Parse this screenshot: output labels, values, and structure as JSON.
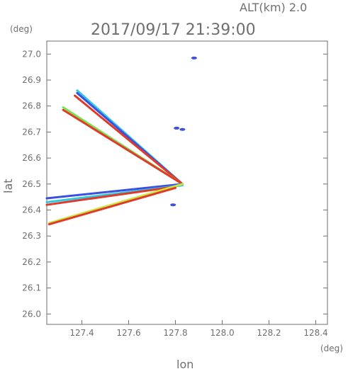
{
  "chart_data": {
    "type": "scatter",
    "title": "2017/09/17 21:39:00",
    "subtitle": "ALT(km) 2.0",
    "xlabel": "lon",
    "ylabel": "lat",
    "x_unit": "(deg)",
    "y_unit": "(deg)",
    "xlim": [
      127.25,
      128.45
    ],
    "ylim": [
      25.96,
      27.05
    ],
    "xticks": [
      "127.4",
      "127.6",
      "127.8",
      "128.0",
      "128.2",
      "128.4"
    ],
    "yticks": [
      "26.0",
      "26.1",
      "26.2",
      "26.3",
      "26.4",
      "26.5",
      "26.6",
      "26.7",
      "26.8",
      "26.9",
      "27.0"
    ],
    "grid": false,
    "colors": {
      "weak": "#3b4fe0",
      "cyan": "#2ec8e0",
      "green": "#7be050",
      "yellow": "#e8e83a",
      "red": "#e03a2a",
      "frame": "#6f6f6f"
    },
    "series": [
      {
        "x": [
          127.38,
          127.83
        ],
        "y": [
          26.86,
          26.5
        ],
        "color": "#2ec8e0"
      },
      {
        "x": [
          127.38,
          127.83
        ],
        "y": [
          26.85,
          26.5
        ],
        "color": "#3b4fe0"
      },
      {
        "x": [
          127.37,
          127.83
        ],
        "y": [
          26.84,
          26.5
        ],
        "color": "#e03a2a"
      },
      {
        "x": [
          127.32,
          127.83
        ],
        "y": [
          26.795,
          26.5
        ],
        "color": "#7be050"
      },
      {
        "x": [
          127.32,
          127.83
        ],
        "y": [
          26.785,
          26.5
        ],
        "color": "#e03a2a"
      },
      {
        "x": [
          127.25,
          127.83
        ],
        "y": [
          26.445,
          26.5
        ],
        "color": "#3b4fe0"
      },
      {
        "x": [
          127.25,
          127.83
        ],
        "y": [
          26.43,
          26.495
        ],
        "color": "#2ec8e0"
      },
      {
        "x": [
          127.25,
          127.8
        ],
        "y": [
          26.42,
          26.49
        ],
        "color": "#e03a2a"
      },
      {
        "x": [
          127.26,
          127.83
        ],
        "y": [
          26.35,
          26.5
        ],
        "color": "#c8e840"
      },
      {
        "x": [
          127.26,
          127.8
        ],
        "y": [
          26.345,
          26.485
        ],
        "color": "#e03a2a"
      }
    ],
    "echoes": [
      {
        "x": 127.88,
        "y": 26.985,
        "color": "#3b4fe0"
      },
      {
        "x": 127.805,
        "y": 26.715,
        "color": "#3b4fe0"
      },
      {
        "x": 127.83,
        "y": 26.71,
        "color": "#3b4fe0"
      },
      {
        "x": 127.79,
        "y": 26.42,
        "color": "#3b4fe0"
      }
    ]
  }
}
